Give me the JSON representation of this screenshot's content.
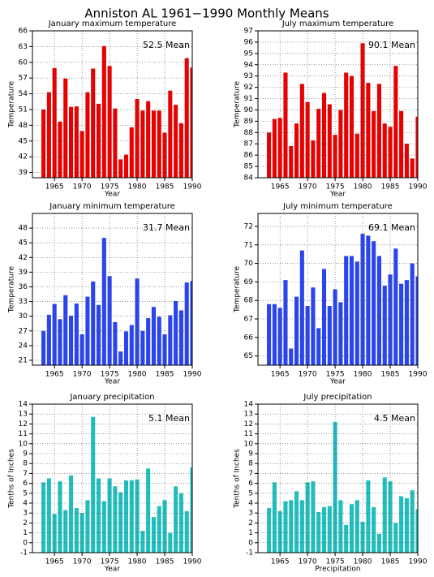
{
  "title": "Anniston AL   1961−1990 Monthly Means",
  "chart_data": [
    {
      "type": "bar",
      "title": "January maximum temperature",
      "annotation": "52.5 Mean",
      "ylabel": "Temperature",
      "xlabel": "Year",
      "color": "#e80000",
      "x": [
        1963,
        1964,
        1965,
        1966,
        1967,
        1968,
        1969,
        1970,
        1971,
        1972,
        1973,
        1974,
        1975,
        1976,
        1977,
        1978,
        1979,
        1980,
        1981,
        1982,
        1983,
        1984,
        1985,
        1986,
        1987,
        1988,
        1989,
        1990
      ],
      "values": [
        51.0,
        54.3,
        58.9,
        48.7,
        56.9,
        51.5,
        51.6,
        46.9,
        54.3,
        58.8,
        52.1,
        63.1,
        59.3,
        51.2,
        41.5,
        42.4,
        47.6,
        53.0,
        50.8,
        52.6,
        50.8,
        50.8,
        46.6,
        54.6,
        51.9,
        48.4,
        60.8,
        59.0
      ],
      "xlim": [
        1961,
        1990
      ],
      "ylim": [
        38,
        66
      ],
      "xticks": [
        1965,
        1970,
        1975,
        1980,
        1985,
        1990
      ],
      "yticks": [
        39,
        42,
        45,
        48,
        51,
        54,
        57,
        60,
        63,
        66
      ],
      "grid": true
    },
    {
      "type": "bar",
      "title": "July maximum temperature",
      "annotation": "90.1 Mean",
      "ylabel": "Temperature",
      "xlabel": "Year",
      "color": "#e80000",
      "x": [
        1963,
        1964,
        1965,
        1966,
        1967,
        1968,
        1969,
        1970,
        1971,
        1972,
        1973,
        1974,
        1975,
        1976,
        1977,
        1978,
        1979,
        1980,
        1981,
        1982,
        1983,
        1984,
        1985,
        1986,
        1987,
        1988,
        1989,
        1990
      ],
      "values": [
        88.0,
        89.2,
        89.3,
        93.3,
        86.8,
        88.8,
        92.3,
        90.7,
        87.3,
        90.1,
        91.5,
        90.5,
        87.8,
        90.0,
        93.3,
        93.0,
        87.9,
        95.9,
        92.4,
        89.9,
        92.3,
        88.8,
        88.5,
        93.9,
        89.9,
        87.0,
        85.7,
        89.4
      ],
      "xlim": [
        1961,
        1990
      ],
      "ylim": [
        84,
        97
      ],
      "xticks": [
        1965,
        1970,
        1975,
        1980,
        1985,
        1990
      ],
      "yticks": [
        84,
        85,
        86,
        87,
        88,
        89,
        90,
        91,
        92,
        93,
        94,
        95,
        96,
        97
      ],
      "grid": true
    },
    {
      "type": "bar",
      "title": "January minimum temperature",
      "annotation": "31.7 Mean",
      "ylabel": "Temperature",
      "xlabel": "Year",
      "color": "#2a44ee",
      "x": [
        1963,
        1964,
        1965,
        1966,
        1967,
        1968,
        1969,
        1970,
        1971,
        1972,
        1973,
        1974,
        1975,
        1976,
        1977,
        1978,
        1979,
        1980,
        1981,
        1982,
        1983,
        1984,
        1985,
        1986,
        1987,
        1988,
        1989,
        1990
      ],
      "values": [
        27.0,
        30.3,
        32.5,
        29.4,
        34.3,
        30.1,
        32.6,
        26.3,
        34.0,
        37.1,
        32.3,
        46.0,
        38.2,
        28.8,
        22.8,
        26.9,
        28.2,
        37.7,
        27.0,
        29.6,
        31.9,
        29.9,
        26.3,
        30.2,
        33.1,
        31.2,
        36.9,
        37.2
      ],
      "xlim": [
        1961,
        1990
      ],
      "ylim": [
        20,
        51
      ],
      "xticks": [
        1965,
        1970,
        1975,
        1980,
        1985,
        1990
      ],
      "yticks": [
        21,
        24,
        27,
        30,
        33,
        36,
        39,
        42,
        45,
        48
      ],
      "grid": true
    },
    {
      "type": "bar",
      "title": "July minimum temperature",
      "annotation": "69.1 Mean",
      "ylabel": "Temperature",
      "xlabel": "Year",
      "color": "#2a44ee",
      "x": [
        1963,
        1964,
        1965,
        1966,
        1967,
        1968,
        1969,
        1970,
        1971,
        1972,
        1973,
        1974,
        1975,
        1976,
        1977,
        1978,
        1979,
        1980,
        1981,
        1982,
        1983,
        1984,
        1985,
        1986,
        1987,
        1988,
        1989,
        1990
      ],
      "values": [
        67.8,
        67.8,
        67.6,
        69.1,
        65.4,
        68.2,
        70.7,
        67.7,
        68.7,
        66.5,
        69.7,
        67.7,
        68.6,
        67.9,
        70.4,
        70.4,
        70.1,
        71.6,
        71.5,
        71.2,
        70.4,
        68.8,
        69.4,
        70.8,
        68.9,
        69.1,
        70.0,
        69.3
      ],
      "xlim": [
        1961,
        1990
      ],
      "ylim": [
        64.5,
        72.7
      ],
      "xticks": [
        1965,
        1970,
        1975,
        1980,
        1985,
        1990
      ],
      "yticks": [
        65,
        66,
        67,
        68,
        69,
        70,
        71,
        72
      ],
      "grid": true
    },
    {
      "type": "bar",
      "title": "January precipitation",
      "annotation": "5.1  Mean",
      "ylabel": "Tenths of Inches",
      "xlabel": "Year",
      "color": "#22bdbd",
      "x": [
        1963,
        1964,
        1965,
        1966,
        1967,
        1968,
        1969,
        1970,
        1971,
        1972,
        1973,
        1974,
        1975,
        1976,
        1977,
        1978,
        1979,
        1980,
        1981,
        1982,
        1983,
        1984,
        1985,
        1986,
        1987,
        1988,
        1989,
        1990
      ],
      "values": [
        6.1,
        6.5,
        2.9,
        6.2,
        3.3,
        6.8,
        3.5,
        3.0,
        4.3,
        12.7,
        6.5,
        4.2,
        6.5,
        5.7,
        5.1,
        6.3,
        6.3,
        6.4,
        1.2,
        7.5,
        2.6,
        3.7,
        4.3,
        1.0,
        5.7,
        5.0,
        3.2,
        7.6
      ],
      "xlim": [
        1961,
        1990
      ],
      "ylim": [
        -1,
        14
      ],
      "xticks": [
        1965,
        1970,
        1975,
        1980,
        1985,
        1990
      ],
      "yticks": [
        -1,
        0,
        1,
        2,
        3,
        4,
        5,
        6,
        7,
        8,
        9,
        10,
        11,
        12,
        13,
        14
      ],
      "grid": true
    },
    {
      "type": "bar",
      "title": "July precipitation",
      "annotation": "4.5  Mean",
      "ylabel": "Tenths of Inches",
      "xlabel": "Precipitation",
      "color": "#22bdbd",
      "x": [
        1963,
        1964,
        1965,
        1966,
        1967,
        1968,
        1969,
        1970,
        1971,
        1972,
        1973,
        1974,
        1975,
        1976,
        1977,
        1978,
        1979,
        1980,
        1981,
        1982,
        1983,
        1984,
        1985,
        1986,
        1987,
        1988,
        1989,
        1990
      ],
      "values": [
        3.5,
        6.1,
        3.2,
        4.2,
        4.3,
        5.2,
        4.3,
        6.1,
        6.2,
        3.1,
        3.6,
        3.7,
        12.2,
        4.3,
        1.8,
        3.9,
        4.3,
        2.1,
        6.3,
        3.6,
        0.9,
        6.6,
        6.2,
        2.0,
        4.7,
        4.5,
        5.3,
        3.4
      ],
      "xlim": [
        1961,
        1990
      ],
      "ylim": [
        -1,
        14
      ],
      "xticks": [
        1965,
        1970,
        1975,
        1980,
        1985,
        1990
      ],
      "yticks": [
        -1,
        0,
        1,
        2,
        3,
        4,
        5,
        6,
        7,
        8,
        9,
        10,
        11,
        12,
        13,
        14
      ],
      "grid": true
    }
  ]
}
